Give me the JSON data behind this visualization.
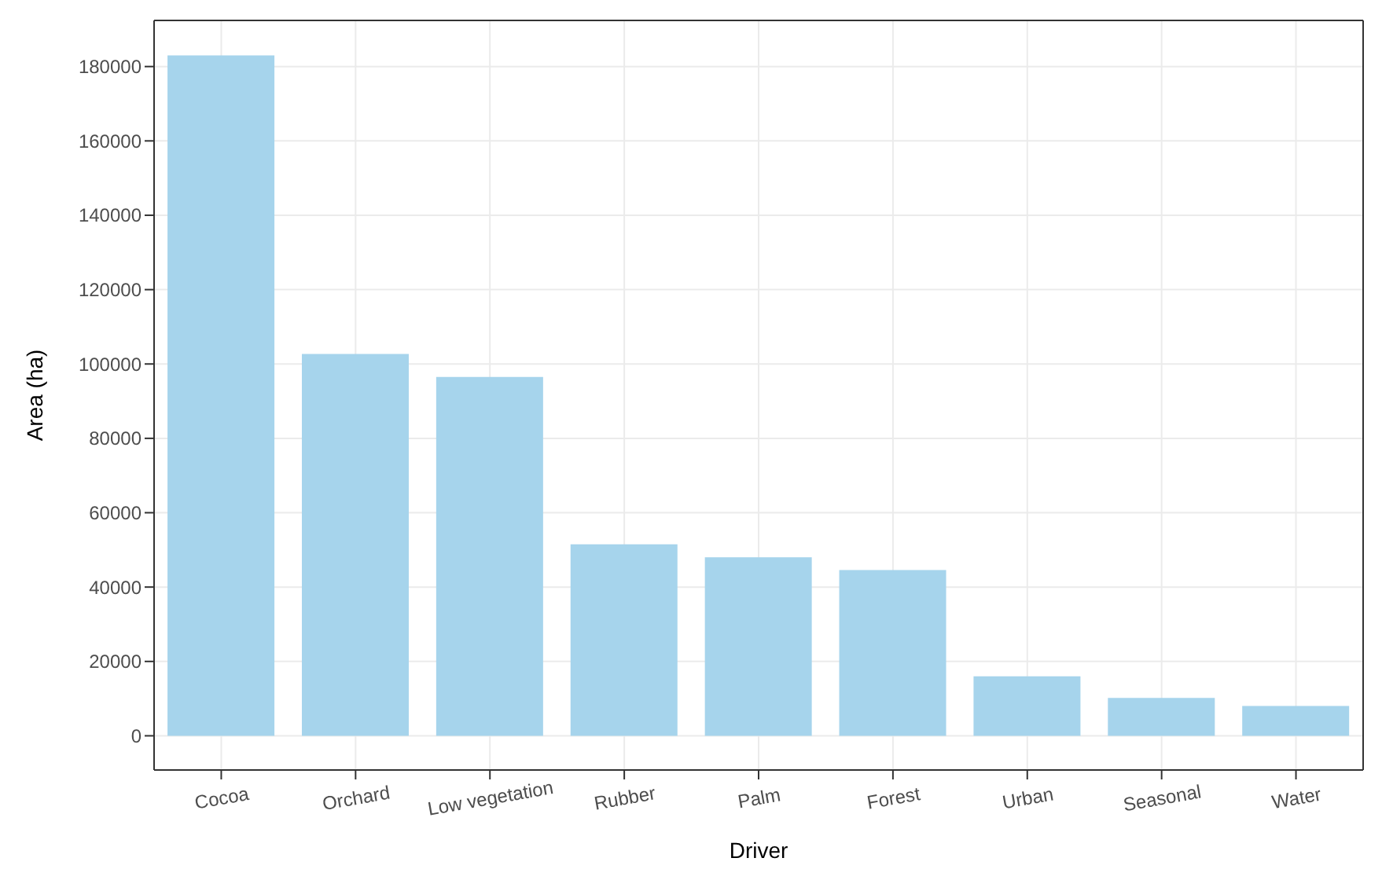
{
  "chart_data": {
    "type": "bar",
    "xlabel": "Driver",
    "ylabel": "Area (ha)",
    "categories": [
      "Cocoa",
      "Orchard",
      "Low vegetation",
      "Rubber",
      "Palm",
      "Forest",
      "Urban",
      "Seasonal",
      "Water"
    ],
    "values": [
      183000,
      102700,
      96500,
      51500,
      48000,
      44600,
      16000,
      10200,
      8000
    ],
    "color": "#a6d4ec",
    "ylim": [
      -9200,
      192400
    ],
    "yticks": [
      0,
      20000,
      40000,
      60000,
      80000,
      100000,
      120000,
      140000,
      160000,
      180000
    ],
    "grid": true
  }
}
